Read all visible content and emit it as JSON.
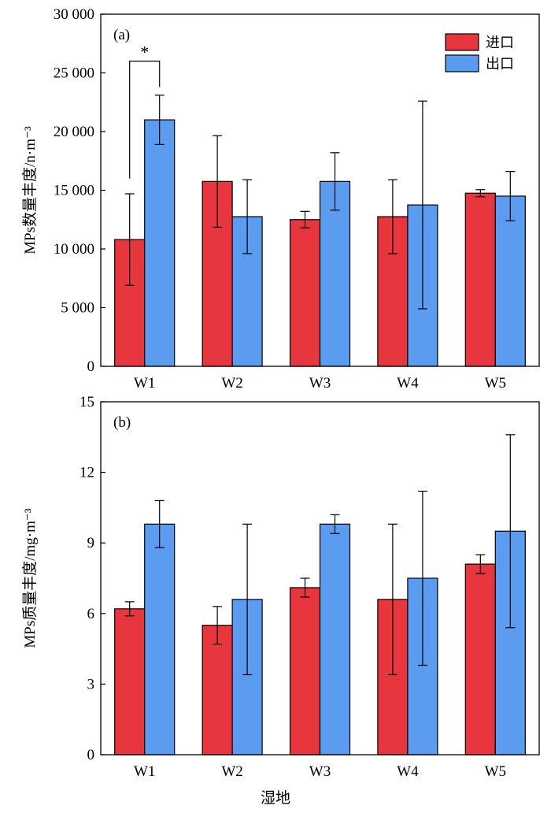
{
  "colors": {
    "inlet": "#e8363f",
    "outlet": "#5b9bf0"
  },
  "shared_xlabel": "湿地",
  "chart_data": [
    {
      "type": "bar",
      "panel_label": "(a)",
      "ylabel": "MPs数量丰度/n·m⁻³",
      "ylim": [
        0,
        30000
      ],
      "yticks": [
        0,
        5000,
        10000,
        15000,
        20000,
        25000,
        30000
      ],
      "ytick_labels": [
        "0",
        "5 000",
        "10 000",
        "15 000",
        "20 000",
        "25 000",
        "30 000"
      ],
      "categories": [
        "W1",
        "W2",
        "W3",
        "W4",
        "W5"
      ],
      "legend": "top-right",
      "series": [
        {
          "name": "进口",
          "values": [
            10800,
            15750,
            12500,
            12750,
            14750
          ],
          "error": [
            3900,
            3900,
            700,
            3150,
            300
          ]
        },
        {
          "name": "出口",
          "values": [
            21000,
            12750,
            15750,
            13750,
            14500
          ],
          "error": [
            2100,
            3150,
            2450,
            8850,
            2100
          ]
        }
      ],
      "annotation": {
        "text": "*",
        "category": "W1",
        "bracket_y": 26000,
        "left_y": 16000,
        "right_y": 23800
      }
    },
    {
      "type": "bar",
      "panel_label": "(b)",
      "ylabel": "MPs质量丰度/mg·m⁻³",
      "ylim": [
        0,
        15
      ],
      "yticks": [
        0,
        3,
        6,
        9,
        12,
        15
      ],
      "ytick_labels": [
        "0",
        "3",
        "6",
        "9",
        "12",
        "15"
      ],
      "categories": [
        "W1",
        "W2",
        "W3",
        "W4",
        "W5"
      ],
      "series": [
        {
          "name": "进口",
          "values": [
            6.2,
            5.5,
            7.1,
            6.6,
            8.1
          ],
          "error": [
            0.3,
            0.8,
            0.4,
            3.2,
            0.4
          ]
        },
        {
          "name": "出口",
          "values": [
            9.8,
            6.6,
            9.8,
            7.5,
            9.5
          ],
          "error": [
            1.0,
            3.2,
            0.4,
            3.7,
            4.1
          ]
        }
      ]
    }
  ]
}
